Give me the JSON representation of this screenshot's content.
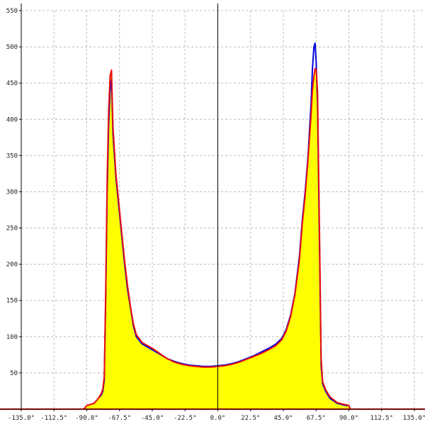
{
  "chart_data": {
    "type": "area",
    "xlim": [
      -135,
      135
    ],
    "ylim": [
      0,
      550
    ],
    "grid": true,
    "x_ticks": [
      -135,
      -112.5,
      -90,
      -67.5,
      -45,
      -22.5,
      0,
      22.5,
      45,
      67.5,
      90,
      112.5,
      135
    ],
    "x_tick_labels": [
      "-135.0°",
      "-112.5°",
      "-90.0°",
      "-67.5°",
      "-45.0°",
      "-22.5°",
      "0.0°",
      "22.5°",
      "45.0°",
      "67.5°",
      "90.0°",
      "112.5°",
      "135.0°"
    ],
    "y_ticks": [
      50,
      100,
      150,
      200,
      250,
      300,
      350,
      400,
      450,
      500,
      550
    ],
    "y_tick_labels": [
      "50",
      "100",
      "150",
      "200",
      "250",
      "300",
      "350",
      "400",
      "450",
      "500",
      "550"
    ],
    "colors": {
      "fill": "#ffff00",
      "blue": "#0000dd",
      "red": "#ee1111",
      "grid": "#bbbbbb"
    },
    "series": [
      {
        "color": "#0000dd",
        "points": [
          [
            -135,
            0
          ],
          [
            -92,
            0
          ],
          [
            -90,
            5
          ],
          [
            -85,
            8
          ],
          [
            -82,
            15
          ],
          [
            -80,
            20
          ],
          [
            -79,
            25
          ],
          [
            -78,
            40
          ],
          [
            -77,
            150
          ],
          [
            -76,
            300
          ],
          [
            -75,
            390
          ],
          [
            -74,
            440
          ],
          [
            -73,
            455
          ],
          [
            -72,
            380
          ],
          [
            -70,
            320
          ],
          [
            -68,
            280
          ],
          [
            -66,
            240
          ],
          [
            -64,
            200
          ],
          [
            -62,
            165
          ],
          [
            -60,
            140
          ],
          [
            -58,
            115
          ],
          [
            -56,
            100
          ],
          [
            -52,
            90
          ],
          [
            -45,
            82
          ],
          [
            -40,
            76
          ],
          [
            -35,
            70
          ],
          [
            -30,
            66
          ],
          [
            -25,
            63
          ],
          [
            -20,
            61
          ],
          [
            -15,
            60
          ],
          [
            -10,
            59
          ],
          [
            -5,
            59
          ],
          [
            0,
            60
          ],
          [
            5,
            61
          ],
          [
            10,
            63
          ],
          [
            15,
            66
          ],
          [
            20,
            70
          ],
          [
            25,
            74
          ],
          [
            30,
            79
          ],
          [
            35,
            84
          ],
          [
            40,
            90
          ],
          [
            44,
            98
          ],
          [
            47,
            110
          ],
          [
            50,
            130
          ],
          [
            53,
            160
          ],
          [
            56,
            210
          ],
          [
            58,
            260
          ],
          [
            60,
            300
          ],
          [
            62,
            350
          ],
          [
            64,
            420
          ],
          [
            65,
            470
          ],
          [
            66,
            500
          ],
          [
            66.8,
            505
          ],
          [
            67.5,
            480
          ],
          [
            68.5,
            420
          ],
          [
            70,
            200
          ],
          [
            71,
            60
          ],
          [
            72,
            35
          ],
          [
            74,
            25
          ],
          [
            77,
            15
          ],
          [
            82,
            8
          ],
          [
            88,
            5
          ],
          [
            90,
            5
          ],
          [
            91,
            0
          ],
          [
            135,
            0
          ]
        ]
      },
      {
        "color": "#ee1111",
        "points": [
          [
            -135,
            0
          ],
          [
            -92,
            0
          ],
          [
            -90,
            5
          ],
          [
            -85,
            8
          ],
          [
            -82,
            15
          ],
          [
            -80,
            22
          ],
          [
            -79,
            28
          ],
          [
            -78,
            45
          ],
          [
            -77,
            160
          ],
          [
            -76,
            320
          ],
          [
            -75,
            410
          ],
          [
            -74,
            460
          ],
          [
            -73,
            468
          ],
          [
            -72,
            390
          ],
          [
            -70,
            325
          ],
          [
            -68,
            285
          ],
          [
            -66,
            245
          ],
          [
            -64,
            205
          ],
          [
            -62,
            170
          ],
          [
            -60,
            142
          ],
          [
            -58,
            118
          ],
          [
            -56,
            103
          ],
          [
            -52,
            92
          ],
          [
            -45,
            84
          ],
          [
            -40,
            77
          ],
          [
            -35,
            70
          ],
          [
            -30,
            65
          ],
          [
            -25,
            62
          ],
          [
            -20,
            60
          ],
          [
            -15,
            59
          ],
          [
            -10,
            58
          ],
          [
            -5,
            58
          ],
          [
            0,
            59
          ],
          [
            5,
            60
          ],
          [
            10,
            62
          ],
          [
            15,
            65
          ],
          [
            20,
            69
          ],
          [
            25,
            73
          ],
          [
            30,
            77
          ],
          [
            35,
            82
          ],
          [
            40,
            88
          ],
          [
            44,
            96
          ],
          [
            47,
            108
          ],
          [
            50,
            128
          ],
          [
            53,
            158
          ],
          [
            56,
            205
          ],
          [
            58,
            255
          ],
          [
            60,
            295
          ],
          [
            62,
            345
          ],
          [
            64,
            405
          ],
          [
            65,
            440
          ],
          [
            66,
            460
          ],
          [
            66.8,
            470
          ],
          [
            67.5,
            468
          ],
          [
            68.5,
            440
          ],
          [
            70,
            220
          ],
          [
            71,
            70
          ],
          [
            72,
            38
          ],
          [
            74,
            27
          ],
          [
            77,
            17
          ],
          [
            82,
            9
          ],
          [
            88,
            6
          ],
          [
            90,
            5
          ],
          [
            91,
            0
          ],
          [
            135,
            0
          ]
        ]
      }
    ]
  }
}
